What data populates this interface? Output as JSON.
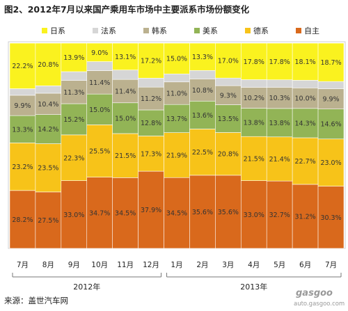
{
  "title": "图2、2012年7月以来国产乘用车市场中主要派系市场份额变化",
  "source": "来源：盖世汽车网",
  "watermark": {
    "brand": "gasgoo",
    "site": "auto.gasgoo.com"
  },
  "chart_data": {
    "type": "bar",
    "stacked": true,
    "percent_stacked": true,
    "legend_position": "top",
    "ylim": [
      0,
      100
    ],
    "categories": [
      "7月",
      "8月",
      "9月",
      "10月",
      "11月",
      "12月",
      "1月",
      "2月",
      "3月",
      "4月",
      "5月",
      "6月",
      "7月"
    ],
    "year_groups": [
      {
        "label": "2012年",
        "from": 0,
        "to": 5
      },
      {
        "label": "2013年",
        "from": 6,
        "to": 12
      }
    ],
    "series": [
      {
        "name": "自主",
        "color": "#D9691C",
        "values": [
          28.2,
          27.5,
          33.0,
          34.7,
          34.5,
          37.9,
          34.5,
          35.6,
          35.6,
          33.0,
          32.7,
          31.2,
          30.3
        ]
      },
      {
        "name": "德系",
        "color": "#F7C319",
        "values": [
          23.2,
          23.5,
          22.3,
          25.5,
          21.5,
          17.3,
          21.9,
          22.5,
          20.8,
          21.5,
          21.4,
          22.7,
          23.0
        ]
      },
      {
        "name": "美系",
        "color": "#92B456",
        "values": [
          13.3,
          14.2,
          15.2,
          15.0,
          15.0,
          12.8,
          13.7,
          13.6,
          13.5,
          13.8,
          13.8,
          14.3,
          14.6
        ]
      },
      {
        "name": "韩系",
        "color": "#BBB18F",
        "values": [
          9.9,
          10.4,
          11.3,
          11.4,
          11.4,
          11.2,
          11.0,
          10.8,
          9.3,
          10.2,
          10.3,
          10.0,
          9.9
        ]
      },
      {
        "name": "法系",
        "color": "#D6D6D6",
        "values": [
          3.2,
          3.6,
          4.3,
          4.4,
          4.6,
          4.4,
          3.9,
          4.1,
          3.7,
          3.7,
          3.6,
          3.7,
          3.5
        ]
      },
      {
        "name": "日系",
        "color": "#FAF21F",
        "values": [
          22.2,
          20.8,
          13.9,
          9.0,
          13.1,
          17.2,
          15.0,
          13.3,
          17.0,
          17.8,
          17.8,
          18.1,
          18.7
        ]
      }
    ],
    "legend_order": [
      "日系",
      "法系",
      "韩系",
      "美系",
      "德系",
      "自主"
    ],
    "labeled_series": [
      "自主",
      "德系",
      "美系",
      "韩系",
      "日系"
    ]
  }
}
